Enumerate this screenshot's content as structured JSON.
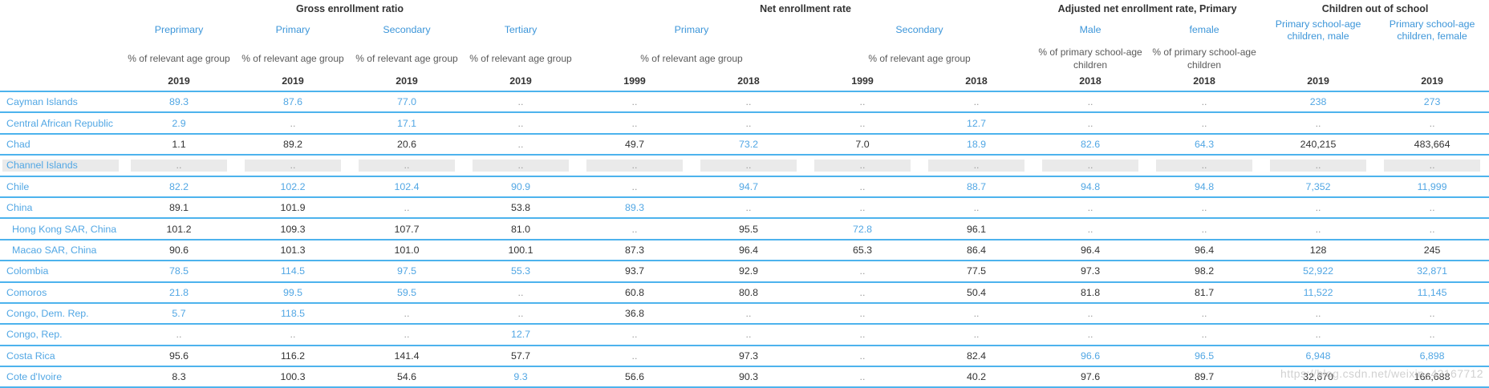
{
  "header": {
    "groups": [
      {
        "label": "Gross enrollment ratio",
        "span": 4
      },
      {
        "label": "Net enrollment rate",
        "span": 4
      },
      {
        "label": "Adjusted net enrollment rate, Primary",
        "span": 2
      },
      {
        "label": "Children out of school",
        "span": 2
      }
    ],
    "subs": [
      {
        "label": "Preprimary",
        "span": 1
      },
      {
        "label": "Primary",
        "span": 1
      },
      {
        "label": "Secondary",
        "span": 1
      },
      {
        "label": "Tertiary",
        "span": 1
      },
      {
        "label": "Primary",
        "span": 2
      },
      {
        "label": "Secondary",
        "span": 2
      },
      {
        "label": "Male",
        "span": 1
      },
      {
        "label": "female",
        "span": 1
      },
      {
        "label": "Primary school-age children, male",
        "span": 1
      },
      {
        "label": "Primary school-age children, female",
        "span": 1
      }
    ],
    "units": [
      {
        "label": "% of relevant age group",
        "span": 1
      },
      {
        "label": "% of relevant age group",
        "span": 1
      },
      {
        "label": "% of relevant age group",
        "span": 1
      },
      {
        "label": "% of relevant age group",
        "span": 1
      },
      {
        "label": "% of relevant age group",
        "span": 2
      },
      {
        "label": "% of relevant age group",
        "span": 2
      },
      {
        "label": "% of primary school-age children",
        "span": 1
      },
      {
        "label": "% of primary school-age children",
        "span": 1
      },
      {
        "label": "",
        "span": 1
      },
      {
        "label": "",
        "span": 1
      }
    ],
    "years": [
      "2019",
      "2019",
      "2019",
      "2019",
      "1999",
      "2018",
      "1999",
      "2018",
      "2018",
      "2018",
      "2019",
      "2019"
    ]
  },
  "colors": {
    "link_blue": "#3d96d9",
    "value_blue": "#52a7e4",
    "row_border": "#4db3ed",
    "value_black": "#333333",
    "missing_gray": "#999999",
    "skeleton_gray": "#eaeaea"
  },
  "missing_marker": "..",
  "watermark": "https://blog.csdn.net/weixin_42167712",
  "rows": [
    {
      "name": "Cayman Islands",
      "indent": false,
      "skeleton": false,
      "cells": [
        {
          "v": "89.3",
          "s": "b"
        },
        {
          "v": "87.6",
          "s": "b"
        },
        {
          "v": "77.0",
          "s": "b"
        },
        {
          "v": "..",
          "s": "d"
        },
        {
          "v": "..",
          "s": "d"
        },
        {
          "v": "..",
          "s": "d"
        },
        {
          "v": "..",
          "s": "d"
        },
        {
          "v": "..",
          "s": "d"
        },
        {
          "v": "..",
          "s": "d"
        },
        {
          "v": "..",
          "s": "d"
        },
        {
          "v": "238",
          "s": "b"
        },
        {
          "v": "273",
          "s": "b"
        }
      ]
    },
    {
      "name": "Central African Republic",
      "indent": false,
      "skeleton": false,
      "cells": [
        {
          "v": "2.9",
          "s": "b"
        },
        {
          "v": "..",
          "s": "d"
        },
        {
          "v": "17.1",
          "s": "b"
        },
        {
          "v": "..",
          "s": "d"
        },
        {
          "v": "..",
          "s": "d"
        },
        {
          "v": "..",
          "s": "d"
        },
        {
          "v": "..",
          "s": "d"
        },
        {
          "v": "12.7",
          "s": "b"
        },
        {
          "v": "..",
          "s": "d"
        },
        {
          "v": "..",
          "s": "d"
        },
        {
          "v": "..",
          "s": "d"
        },
        {
          "v": "..",
          "s": "d"
        }
      ]
    },
    {
      "name": "Chad",
      "indent": false,
      "skeleton": false,
      "cells": [
        {
          "v": "1.1",
          "s": "k"
        },
        {
          "v": "89.2",
          "s": "k"
        },
        {
          "v": "20.6",
          "s": "k"
        },
        {
          "v": "..",
          "s": "d"
        },
        {
          "v": "49.7",
          "s": "k"
        },
        {
          "v": "73.2",
          "s": "b"
        },
        {
          "v": "7.0",
          "s": "k"
        },
        {
          "v": "18.9",
          "s": "b"
        },
        {
          "v": "82.6",
          "s": "b"
        },
        {
          "v": "64.3",
          "s": "b"
        },
        {
          "v": "240,215",
          "s": "k"
        },
        {
          "v": "483,664",
          "s": "k"
        }
      ]
    },
    {
      "name": "Channel Islands",
      "indent": false,
      "skeleton": true,
      "cells": [
        {
          "v": "..",
          "s": "d"
        },
        {
          "v": "..",
          "s": "d"
        },
        {
          "v": "..",
          "s": "d"
        },
        {
          "v": "..",
          "s": "d"
        },
        {
          "v": "..",
          "s": "d"
        },
        {
          "v": "..",
          "s": "d"
        },
        {
          "v": "..",
          "s": "d"
        },
        {
          "v": "..",
          "s": "d"
        },
        {
          "v": "..",
          "s": "d"
        },
        {
          "v": "..",
          "s": "d"
        },
        {
          "v": "..",
          "s": "d"
        },
        {
          "v": "..",
          "s": "d"
        }
      ]
    },
    {
      "name": "Chile",
      "indent": false,
      "skeleton": false,
      "cells": [
        {
          "v": "82.2",
          "s": "b"
        },
        {
          "v": "102.2",
          "s": "b"
        },
        {
          "v": "102.4",
          "s": "b"
        },
        {
          "v": "90.9",
          "s": "b"
        },
        {
          "v": "..",
          "s": "d"
        },
        {
          "v": "94.7",
          "s": "b"
        },
        {
          "v": "..",
          "s": "d"
        },
        {
          "v": "88.7",
          "s": "b"
        },
        {
          "v": "94.8",
          "s": "b"
        },
        {
          "v": "94.8",
          "s": "b"
        },
        {
          "v": "7,352",
          "s": "b"
        },
        {
          "v": "11,999",
          "s": "b"
        }
      ]
    },
    {
      "name": "China",
      "indent": false,
      "skeleton": false,
      "cells": [
        {
          "v": "89.1",
          "s": "k"
        },
        {
          "v": "101.9",
          "s": "k"
        },
        {
          "v": "..",
          "s": "d"
        },
        {
          "v": "53.8",
          "s": "k"
        },
        {
          "v": "89.3",
          "s": "b"
        },
        {
          "v": "..",
          "s": "d"
        },
        {
          "v": "..",
          "s": "d"
        },
        {
          "v": "..",
          "s": "d"
        },
        {
          "v": "..",
          "s": "d"
        },
        {
          "v": "..",
          "s": "d"
        },
        {
          "v": "..",
          "s": "d"
        },
        {
          "v": "..",
          "s": "d"
        }
      ]
    },
    {
      "name": "Hong Kong SAR, China",
      "indent": true,
      "skeleton": false,
      "cells": [
        {
          "v": "101.2",
          "s": "k"
        },
        {
          "v": "109.3",
          "s": "k"
        },
        {
          "v": "107.7",
          "s": "k"
        },
        {
          "v": "81.0",
          "s": "k"
        },
        {
          "v": "..",
          "s": "d"
        },
        {
          "v": "95.5",
          "s": "k"
        },
        {
          "v": "72.8",
          "s": "b"
        },
        {
          "v": "96.1",
          "s": "k"
        },
        {
          "v": "..",
          "s": "d"
        },
        {
          "v": "..",
          "s": "d"
        },
        {
          "v": "..",
          "s": "d"
        },
        {
          "v": "..",
          "s": "d"
        }
      ]
    },
    {
      "name": "Macao SAR, China",
      "indent": true,
      "skeleton": false,
      "cells": [
        {
          "v": "90.6",
          "s": "k"
        },
        {
          "v": "101.3",
          "s": "k"
        },
        {
          "v": "101.0",
          "s": "k"
        },
        {
          "v": "100.1",
          "s": "k"
        },
        {
          "v": "87.3",
          "s": "k"
        },
        {
          "v": "96.4",
          "s": "k"
        },
        {
          "v": "65.3",
          "s": "k"
        },
        {
          "v": "86.4",
          "s": "k"
        },
        {
          "v": "96.4",
          "s": "k"
        },
        {
          "v": "96.4",
          "s": "k"
        },
        {
          "v": "128",
          "s": "k"
        },
        {
          "v": "245",
          "s": "k"
        }
      ]
    },
    {
      "name": "Colombia",
      "indent": false,
      "skeleton": false,
      "cells": [
        {
          "v": "78.5",
          "s": "b"
        },
        {
          "v": "114.5",
          "s": "b"
        },
        {
          "v": "97.5",
          "s": "b"
        },
        {
          "v": "55.3",
          "s": "b"
        },
        {
          "v": "93.7",
          "s": "k"
        },
        {
          "v": "92.9",
          "s": "k"
        },
        {
          "v": "..",
          "s": "d"
        },
        {
          "v": "77.5",
          "s": "k"
        },
        {
          "v": "97.3",
          "s": "k"
        },
        {
          "v": "98.2",
          "s": "k"
        },
        {
          "v": "52,922",
          "s": "b"
        },
        {
          "v": "32,871",
          "s": "b"
        }
      ]
    },
    {
      "name": "Comoros",
      "indent": false,
      "skeleton": false,
      "cells": [
        {
          "v": "21.8",
          "s": "b"
        },
        {
          "v": "99.5",
          "s": "b"
        },
        {
          "v": "59.5",
          "s": "b"
        },
        {
          "v": "..",
          "s": "d"
        },
        {
          "v": "60.8",
          "s": "k"
        },
        {
          "v": "80.8",
          "s": "k"
        },
        {
          "v": "..",
          "s": "d"
        },
        {
          "v": "50.4",
          "s": "k"
        },
        {
          "v": "81.8",
          "s": "k"
        },
        {
          "v": "81.7",
          "s": "k"
        },
        {
          "v": "11,522",
          "s": "b"
        },
        {
          "v": "11,145",
          "s": "b"
        }
      ]
    },
    {
      "name": "Congo, Dem. Rep.",
      "indent": false,
      "skeleton": false,
      "cells": [
        {
          "v": "5.7",
          "s": "b"
        },
        {
          "v": "118.5",
          "s": "b"
        },
        {
          "v": "..",
          "s": "d"
        },
        {
          "v": "..",
          "s": "d"
        },
        {
          "v": "36.8",
          "s": "k"
        },
        {
          "v": "..",
          "s": "d"
        },
        {
          "v": "..",
          "s": "d"
        },
        {
          "v": "..",
          "s": "d"
        },
        {
          "v": "..",
          "s": "d"
        },
        {
          "v": "..",
          "s": "d"
        },
        {
          "v": "..",
          "s": "d"
        },
        {
          "v": "..",
          "s": "d"
        }
      ]
    },
    {
      "name": "Congo, Rep.",
      "indent": false,
      "skeleton": false,
      "cells": [
        {
          "v": "..",
          "s": "d"
        },
        {
          "v": "..",
          "s": "d"
        },
        {
          "v": "..",
          "s": "d"
        },
        {
          "v": "12.7",
          "s": "b"
        },
        {
          "v": "..",
          "s": "d"
        },
        {
          "v": "..",
          "s": "d"
        },
        {
          "v": "..",
          "s": "d"
        },
        {
          "v": "..",
          "s": "d"
        },
        {
          "v": "..",
          "s": "d"
        },
        {
          "v": "..",
          "s": "d"
        },
        {
          "v": "..",
          "s": "d"
        },
        {
          "v": "..",
          "s": "d"
        }
      ]
    },
    {
      "name": "Costa Rica",
      "indent": false,
      "skeleton": false,
      "cells": [
        {
          "v": "95.6",
          "s": "k"
        },
        {
          "v": "116.2",
          "s": "k"
        },
        {
          "v": "141.4",
          "s": "k"
        },
        {
          "v": "57.7",
          "s": "k"
        },
        {
          "v": "..",
          "s": "d"
        },
        {
          "v": "97.3",
          "s": "k"
        },
        {
          "v": "..",
          "s": "d"
        },
        {
          "v": "82.4",
          "s": "k"
        },
        {
          "v": "96.6",
          "s": "b"
        },
        {
          "v": "96.5",
          "s": "b"
        },
        {
          "v": "6,948",
          "s": "b"
        },
        {
          "v": "6,898",
          "s": "b"
        }
      ]
    },
    {
      "name": "Cote d'Ivoire",
      "indent": false,
      "skeleton": false,
      "cells": [
        {
          "v": "8.3",
          "s": "k"
        },
        {
          "v": "100.3",
          "s": "k"
        },
        {
          "v": "54.6",
          "s": "k"
        },
        {
          "v": "9.3",
          "s": "b"
        },
        {
          "v": "56.6",
          "s": "k"
        },
        {
          "v": "90.3",
          "s": "k"
        },
        {
          "v": "..",
          "s": "d"
        },
        {
          "v": "40.2",
          "s": "k"
        },
        {
          "v": "97.6",
          "s": "k"
        },
        {
          "v": "89.7",
          "s": "k"
        },
        {
          "v": "32,670",
          "s": "k"
        },
        {
          "v": "166,688",
          "s": "k"
        }
      ]
    }
  ]
}
